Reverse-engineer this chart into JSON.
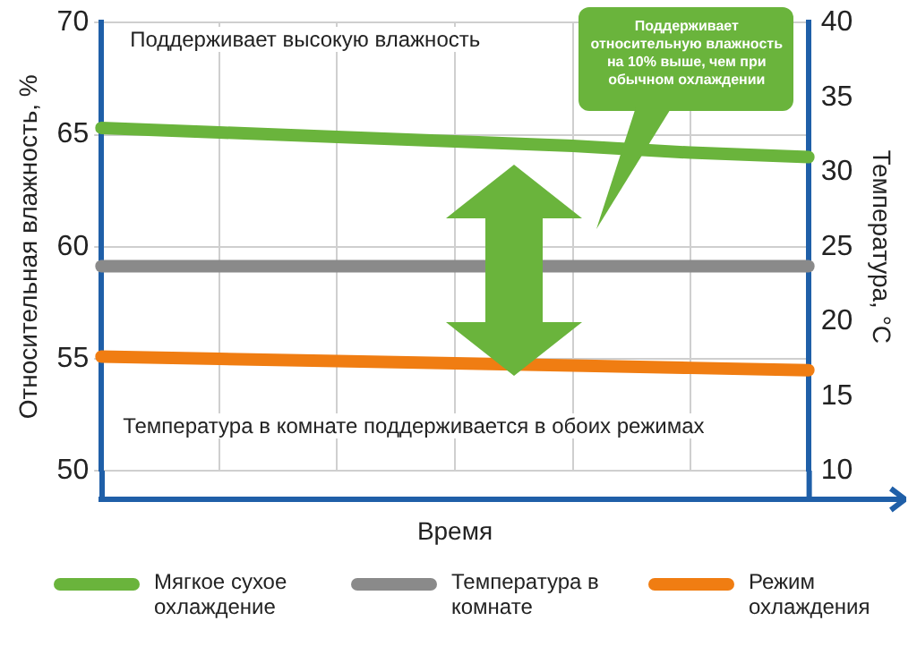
{
  "chart_data": {
    "type": "line",
    "xlabel": "Время",
    "ylabel": "Относительная влажность, %",
    "y2label": "Температура, °C",
    "categories": [
      null,
      null,
      null,
      null,
      null,
      null,
      null
    ],
    "ylim": [
      50,
      70
    ],
    "yticks": [
      50,
      55,
      60,
      65,
      70
    ],
    "y2lim": [
      10,
      40
    ],
    "y2ticks": [
      10,
      15,
      20,
      25,
      30,
      35,
      40
    ],
    "series": [
      {
        "name": "Мягкое сухое охлаждение",
        "color": "#6ab43c",
        "values": [
          65.3,
          65.1,
          64.9,
          64.7,
          64.5,
          64.2,
          64.0
        ]
      },
      {
        "name": "Температура в комнате",
        "color": "#8a8a8a",
        "values": [
          23.7,
          23.7,
          23.7,
          23.7,
          23.7,
          23.7,
          23.7
        ],
        "axis": "y2"
      },
      {
        "name": "Режим охлаждения",
        "color": "#f07d12",
        "values": [
          55.1,
          55.0,
          54.9,
          54.8,
          54.7,
          54.6,
          54.5
        ]
      }
    ],
    "annotations": [
      "Поддерживает высокую влажность",
      "Температура в комнате поддерживается в обоих режимах",
      "Поддерживает относительную влажность на 10% выше, чем при обычном охлаждении"
    ],
    "grid": true,
    "legend": "bottom",
    "tick_labels": "y",
    "marker": "none",
    "line_style": "solid"
  }
}
